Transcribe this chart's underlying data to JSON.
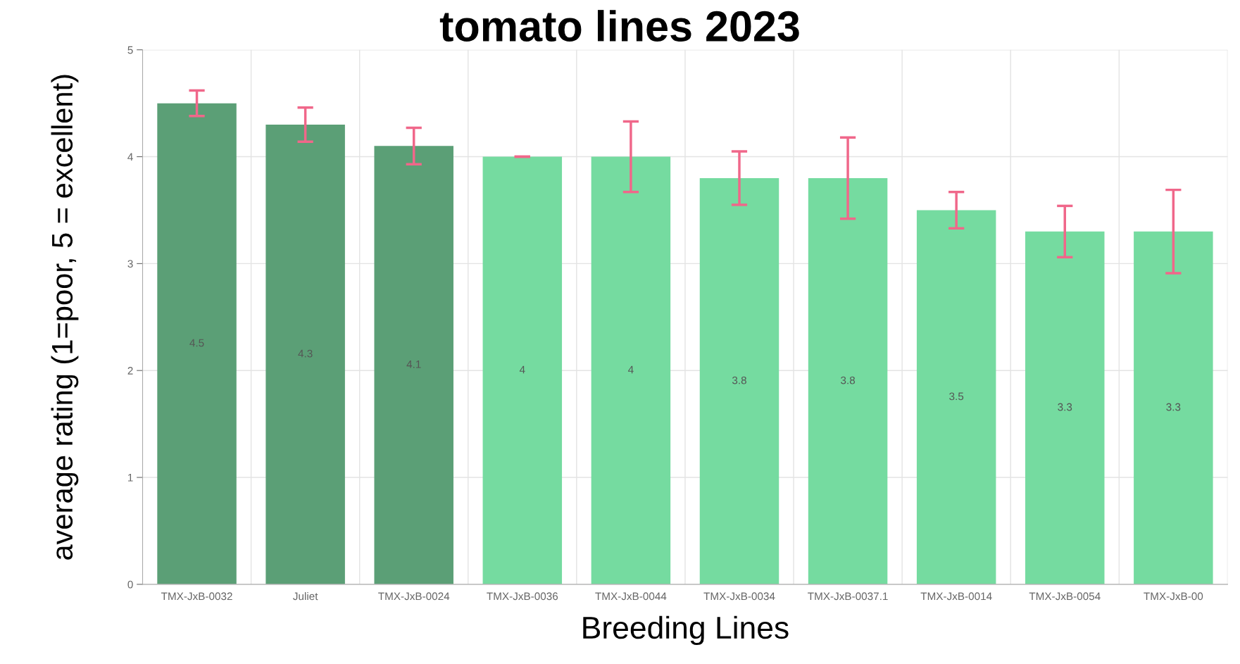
{
  "chart_data": {
    "type": "bar",
    "title": "tomato lines 2023",
    "xlabel": "Breeding Lines",
    "ylabel": "average rating (1=poor, 5 = excellent)",
    "categories": [
      "TMX-JxB-0032",
      "Juliet",
      "TMX-JxB-0024",
      "TMX-JxB-0036",
      "TMX-JxB-0044",
      "TMX-JxB-0034",
      "TMX-JxB-0037.1",
      "TMX-JxB-0014",
      "TMX-JxB-0054",
      "TMX-JxB-00"
    ],
    "values": [
      4.5,
      4.3,
      4.1,
      4,
      4,
      3.8,
      3.8,
      3.5,
      3.3,
      3.3
    ],
    "colors": [
      "#5b9f76",
      "#5b9f76",
      "#5b9f76",
      "#75dba0",
      "#75dba0",
      "#75dba0",
      "#75dba0",
      "#75dba0",
      "#75dba0",
      "#75dba0"
    ],
    "errors": [
      0.12,
      0.16,
      0.17,
      0,
      0.33,
      0.25,
      0.38,
      0.17,
      0.24,
      0.39
    ],
    "ylim": [
      0,
      5
    ],
    "yticks": [
      0,
      1,
      2,
      3,
      4,
      5
    ],
    "grid": true,
    "data_labels": true
  }
}
